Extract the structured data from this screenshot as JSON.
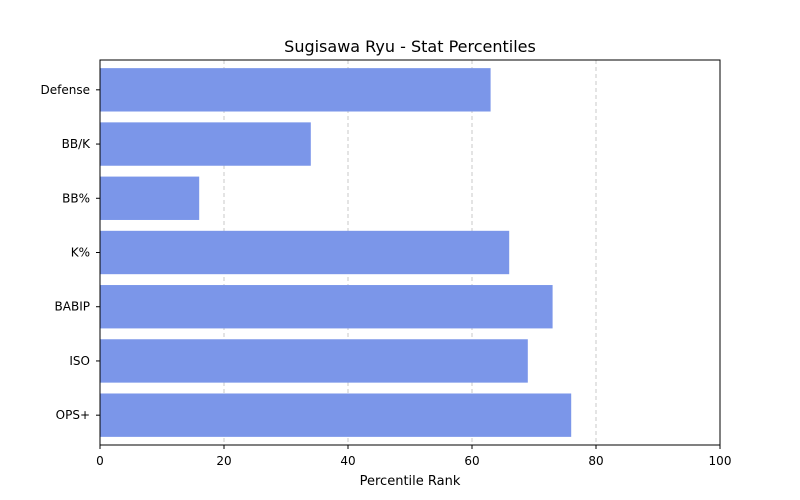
{
  "chart_data": {
    "type": "bar",
    "orientation": "horizontal",
    "title": "Sugisawa Ryu - Stat Percentiles",
    "xlabel": "Percentile Rank",
    "ylabel": "",
    "categories": [
      "Defense",
      "BB/K",
      "BB%",
      "K%",
      "BABIP",
      "ISO",
      "OPS+"
    ],
    "values": [
      63,
      34,
      16,
      66,
      73,
      69,
      76
    ],
    "xlim": [
      0,
      100
    ],
    "xticks": [
      0,
      20,
      40,
      60,
      80,
      100
    ],
    "grid": "x-dashed",
    "bar_color": "#7b96e9"
  }
}
